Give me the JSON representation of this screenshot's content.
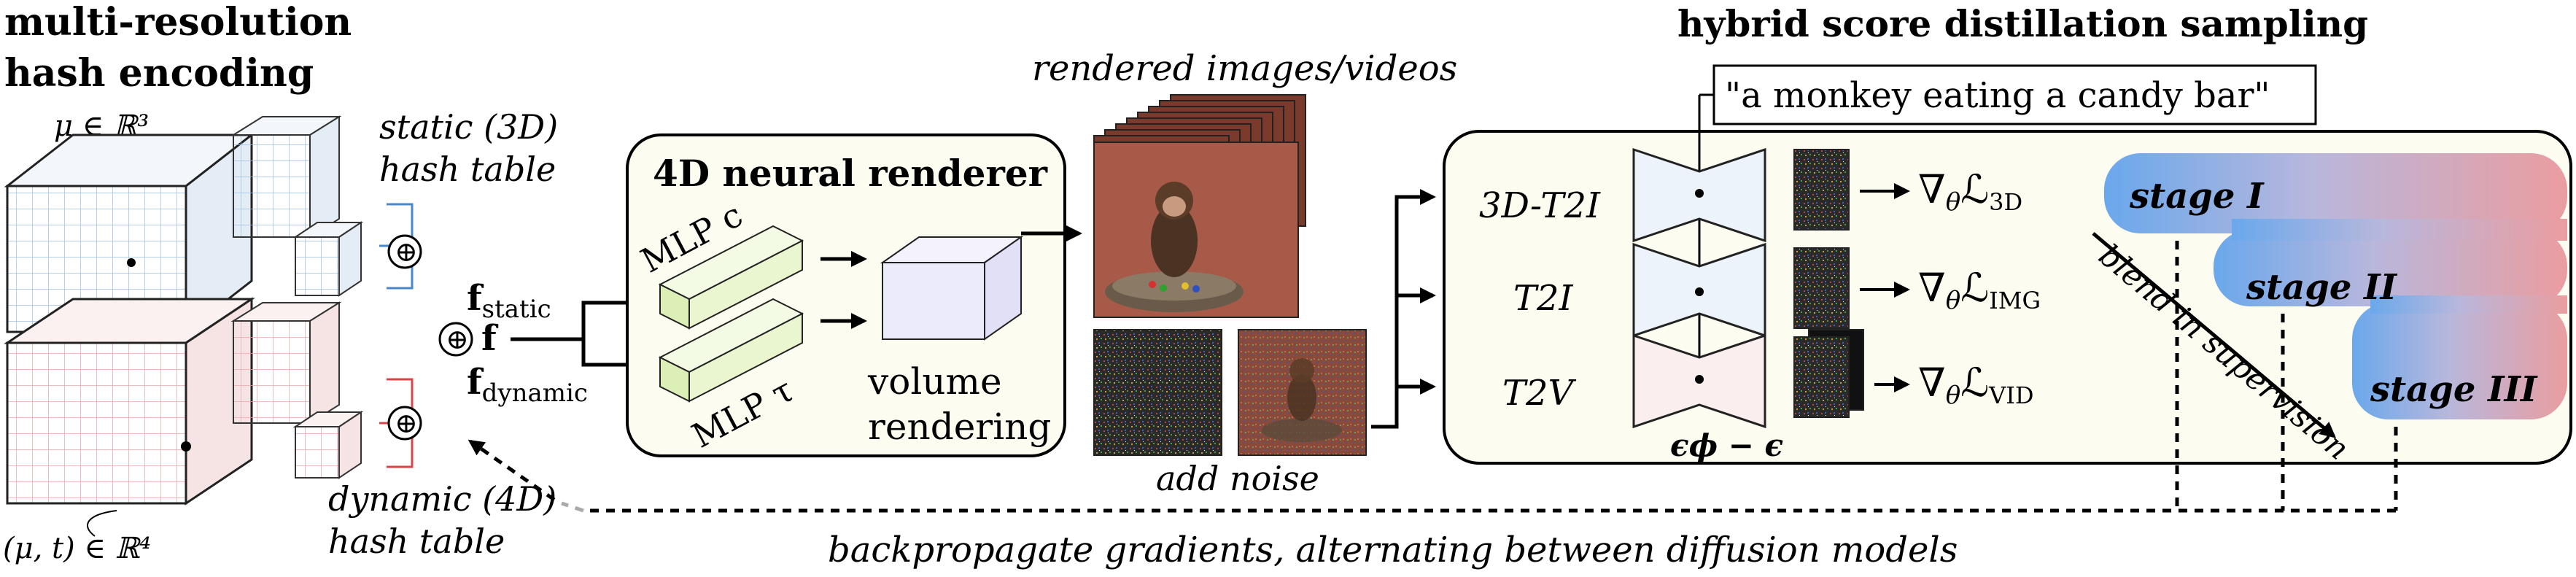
{
  "hash_encoding": {
    "title_line1": "multi-resolution",
    "title_line2": "hash encoding",
    "mu_label": "μ ∈ ℝ³",
    "mut_label": "(μ, t) ∈ ℝ⁴",
    "static_line1": "static (3D)",
    "static_line2": "hash table",
    "dynamic_line1": "dynamic (4D)",
    "dynamic_line2": "hash table",
    "f_static": "f",
    "f_static_sub": "static",
    "f_dynamic": "f",
    "f_dynamic_sub": "dynamic",
    "f_combined": "f",
    "oplus": "⊕"
  },
  "renderer": {
    "title": "4D neural renderer",
    "mlp_c": "MLP c",
    "mlp_tau": "MLP τ",
    "volume_line1": "volume",
    "volume_line2": "rendering"
  },
  "rendered": {
    "title": "rendered images/videos",
    "add_noise": "add noise"
  },
  "hsds": {
    "title": "hybrid score distillation sampling",
    "prompt": "\"a monkey eating a candy bar\"",
    "models": [
      "3D-T2I",
      "T2I",
      "T2V"
    ],
    "gradients": [
      {
        "nabla": "∇",
        "theta": "θ",
        "L": "ℒ",
        "sub": "3D"
      },
      {
        "nabla": "∇",
        "theta": "θ",
        "L": "ℒ",
        "sub": "IMG"
      },
      {
        "nabla": "∇",
        "theta": "θ",
        "L": "ℒ",
        "sub": "VID"
      }
    ],
    "eps_label": "ϵϕ − ϵ",
    "stages": [
      "stage I",
      "stage II",
      "stage III"
    ],
    "blend": "blend in supervision",
    "backprop": "backpropagate gradients, alternating between diffusion models"
  },
  "colors": {
    "static_blue": "#4a86c8",
    "dynamic_red": "#d6454a",
    "static_face": "#edf3fb",
    "dynamic_face": "#fbeeee",
    "panel_fill": "#fdfcf1",
    "mlp_green": "#eaf6cf",
    "volume_lilac": "#ecebfb",
    "stage_blue": "#6aa8ec",
    "stage_pink": "#ea9da0",
    "monkey_bg": "#a85a48",
    "noise_dark": "#1e1e1e"
  }
}
